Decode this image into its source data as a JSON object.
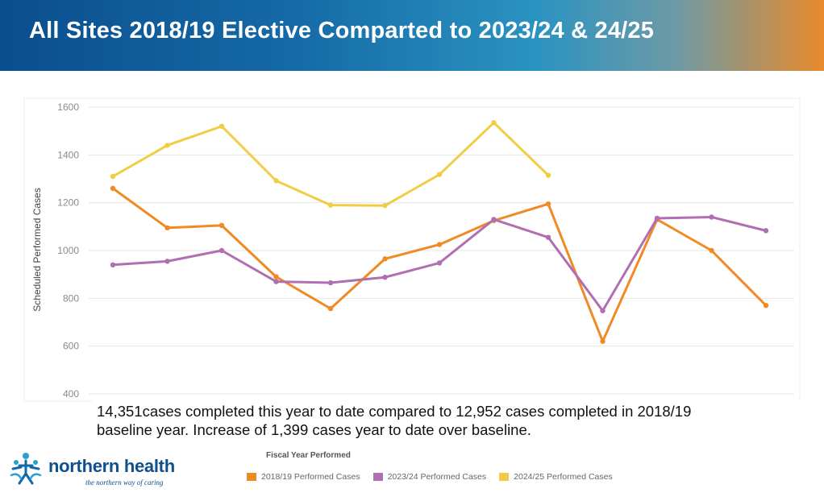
{
  "header": {
    "title": "All Sites 2018/19 Elective Comparted to 2023/24 & 24/25"
  },
  "chart_data": {
    "type": "line",
    "ylabel": "Scheduled Performed Cases",
    "xlabel": "Fiscal Year Performed",
    "ylim": [
      400,
      1600
    ],
    "yticks": [
      400,
      600,
      800,
      1000,
      1200,
      1400,
      1600
    ],
    "ytick_labels": [
      "400",
      "600",
      "800",
      "1000",
      "1200",
      "1400",
      "1600"
    ],
    "grid": true,
    "legend_position": "bottom",
    "series": [
      {
        "name": "2018/19 Performed Cases",
        "color": "#f08a24",
        "values": [
          1260,
          1095,
          1105,
          890,
          757,
          965,
          1025,
          1125,
          1195,
          620,
          1130,
          1000,
          770
        ]
      },
      {
        "name": "2023/24 Performed Cases",
        "color": "#b06fb0",
        "values": [
          940,
          955,
          1000,
          870,
          865,
          888,
          948,
          1130,
          1055,
          748,
          1135,
          1140,
          1083
        ]
      },
      {
        "name": "2024/25 Performed Cases",
        "color": "#f0cd45",
        "values": [
          1310,
          1440,
          1520,
          1292,
          1190,
          1188,
          1318,
          1535,
          1315
        ]
      }
    ]
  },
  "caption": {
    "line1": "14,351cases completed this year to date compared to 12,952 cases completed in 2018/19",
    "line2": "baseline year. Increase of 1,399 cases year to date over baseline."
  },
  "legend": {
    "title": "Fiscal Year Performed",
    "items": [
      {
        "label": "2018/19 Performed Cases",
        "color": "#f08a24"
      },
      {
        "label": "2023/24 Performed Cases",
        "color": "#b06fb0"
      },
      {
        "label": "2024/25 Performed Cases",
        "color": "#f0cd45"
      }
    ]
  },
  "logo": {
    "name": "northern health",
    "tagline": "the northern way of caring"
  }
}
